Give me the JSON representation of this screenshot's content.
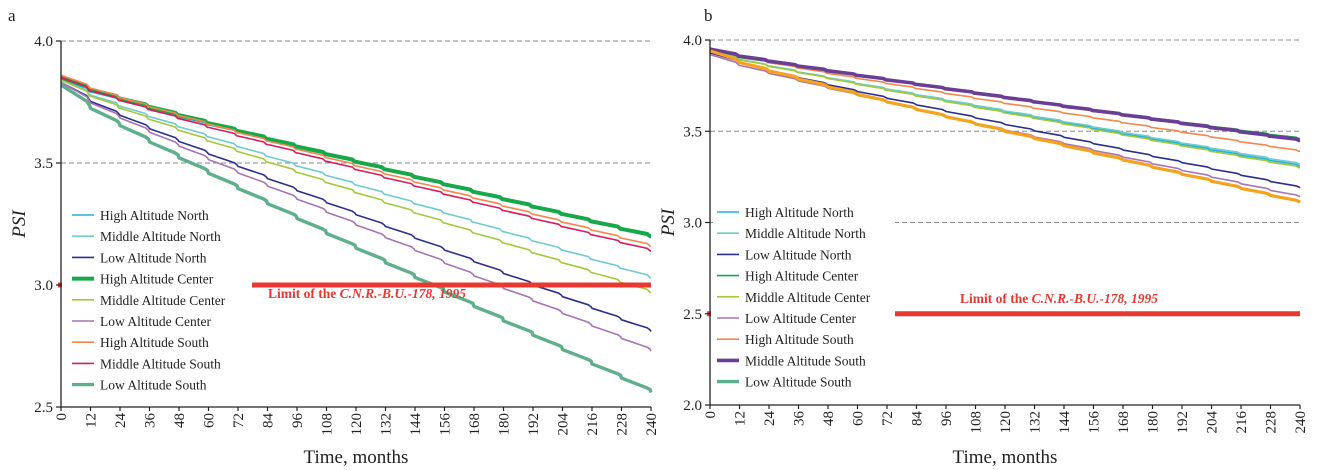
{
  "chart_data": [
    {
      "type": "line",
      "panel_label": "a",
      "xlabel": "Time, months",
      "ylabel": "PSI",
      "xlim": [
        0,
        240
      ],
      "ylim": [
        2.5,
        4.0
      ],
      "x_ticks": [
        0,
        12,
        24,
        36,
        48,
        60,
        72,
        84,
        96,
        108,
        120,
        132,
        144,
        156,
        168,
        180,
        192,
        204,
        216,
        228,
        240
      ],
      "y_ticks": [
        "2.5",
        "3.0",
        "3.5",
        "4.0"
      ],
      "gridlines_y": [
        3.5,
        4.0
      ],
      "limit": {
        "value": 3.0,
        "label_prefix": "Limit of the ",
        "label_italic": "C.N.R.-B.U.-178, 1995",
        "color": "#e8382f"
      },
      "legend_position": "left",
      "series": [
        {
          "name": "High Altitude North",
          "color": "#1fb2df",
          "width": 1.6,
          "start": 3.84,
          "end": 3.2,
          "drop_step": 0.0
        },
        {
          "name": "Middle Altitude North",
          "color": "#6ecbd0",
          "width": 1.6,
          "start": 3.84,
          "end": 3.03,
          "drop_step": 0.0
        },
        {
          "name": "Low Altitude North",
          "color": "#2a2f8e",
          "width": 1.6,
          "start": 3.83,
          "end": 2.81,
          "drop_step": 0.006
        },
        {
          "name": "High Altitude Center",
          "color": "#17a84a",
          "width": 4.0,
          "start": 3.85,
          "end": 3.2,
          "drop_step": 0.0
        },
        {
          "name": "Middle Altitude Center",
          "color": "#a3c93a",
          "width": 1.6,
          "start": 3.84,
          "end": 2.97,
          "drop_step": 0.0
        },
        {
          "name": "Low Altitude Center",
          "color": "#a873b3",
          "width": 1.6,
          "start": 3.83,
          "end": 2.73,
          "drop_step": 0.007
        },
        {
          "name": "High Altitude South",
          "color": "#f4874b",
          "width": 1.6,
          "start": 3.86,
          "end": 3.16,
          "drop_step": 0.0
        },
        {
          "name": "Middle Altitude South",
          "color": "#d81b5c",
          "width": 1.6,
          "start": 3.85,
          "end": 3.14,
          "drop_step": 0.0
        },
        {
          "name": "Low Altitude South",
          "color": "#5fae8c",
          "width": 3.4,
          "start": 3.82,
          "end": 2.56,
          "drop_step": 0.012
        }
      ]
    },
    {
      "type": "line",
      "panel_label": "b",
      "xlabel": "Time, months",
      "ylabel": "PSI",
      "xlim": [
        0,
        240
      ],
      "ylim": [
        2.0,
        4.0
      ],
      "x_ticks": [
        0,
        12,
        24,
        36,
        48,
        60,
        72,
        84,
        96,
        108,
        120,
        132,
        144,
        156,
        168,
        180,
        192,
        204,
        216,
        228,
        240
      ],
      "y_ticks": [
        "2.0",
        "2.5",
        "3.0",
        "3.5",
        "4.0"
      ],
      "gridlines_y": [
        3.0,
        3.5,
        4.0
      ],
      "limit": {
        "value": 2.5,
        "label_prefix": "Limit of the ",
        "label_italic": "C.N.R.-B.U.-178, 1995",
        "color": "#e8382f"
      },
      "legend_position": "left",
      "series": [
        {
          "name": "High Altitude North",
          "color": "#1fb2df",
          "width": 1.6,
          "start": 3.94,
          "end": 3.31,
          "drop_step": 0.0
        },
        {
          "name": "Middle Altitude North",
          "color": "#6ecbd0",
          "width": 1.6,
          "start": 3.94,
          "end": 3.32,
          "drop_step": 0.0
        },
        {
          "name": "Low Altitude North",
          "color": "#2a2f8e",
          "width": 1.6,
          "start": 3.93,
          "end": 3.19,
          "drop_step": 0.004
        },
        {
          "name": "High Altitude Center",
          "color": "#17a84a",
          "width": 1.6,
          "start": 3.94,
          "end": 3.46,
          "drop_step": 0.0
        },
        {
          "name": "Middle Altitude Center",
          "color": "#a3c93a",
          "width": 1.6,
          "start": 3.94,
          "end": 3.3,
          "drop_step": 0.0
        },
        {
          "name": "Low Altitude Center",
          "color": "#a873b3",
          "width": 1.6,
          "start": 3.92,
          "end": 3.14,
          "drop_step": 0.004
        },
        {
          "name": "High Altitude South",
          "color": "#f4874b",
          "width": 1.6,
          "start": 3.95,
          "end": 3.39,
          "drop_step": 0.0
        },
        {
          "name": "Middle Altitude South",
          "color": "#6a3d96",
          "width": 3.6,
          "start": 3.95,
          "end": 3.45,
          "drop_step": 0.0
        },
        {
          "name": "Low Altitude South",
          "color": "#5fae8c",
          "width": 3.4,
          "start": null,
          "end": null,
          "drop_step": 0.0
        },
        {
          "name": "",
          "color": "#f7a21b",
          "width": 3.2,
          "start": 3.94,
          "end": 3.11,
          "drop_step": 0.005
        }
      ]
    }
  ]
}
